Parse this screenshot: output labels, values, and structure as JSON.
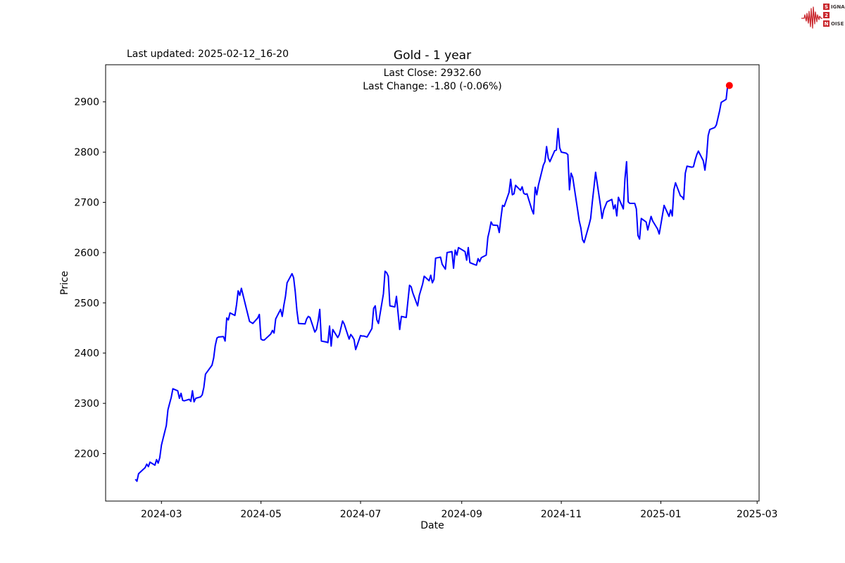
{
  "header": {
    "last_updated": "Last updated: 2025-02-12_16-20"
  },
  "logo": {
    "s": "S",
    "ignal": "IGNAL",
    "two": "2",
    "n": "N",
    "oise": "OISE",
    "accent_color": "#c9252b"
  },
  "chart_data": {
    "type": "line",
    "title": "Gold - 1 year",
    "subtitle_close": "Last Close: 2932.60",
    "subtitle_change": "Last Change: -1.80 (-0.06%)",
    "xlabel": "Date",
    "ylabel": "Price",
    "line_color": "#0000ff",
    "marker_color": "#ff0000",
    "grid": false,
    "x_ticks": [
      "2024-03",
      "2024-05",
      "2024-07",
      "2024-09",
      "2024-11",
      "2025-01",
      "2025-03"
    ],
    "y_ticks": [
      2200,
      2300,
      2400,
      2500,
      2600,
      2700,
      2800,
      2900
    ],
    "x_range_days": [
      "2024-02-14",
      "2025-02-12"
    ],
    "y_range_approx": [
      2105,
      2974
    ],
    "last_point": {
      "date": "2025-02-12",
      "value": 2932.6
    },
    "series": [
      {
        "name": "Gold",
        "points": [
          [
            "2024-02-14",
            2149
          ],
          [
            "2024-02-15",
            2145
          ],
          [
            "2024-02-16",
            2160
          ],
          [
            "2024-02-20",
            2172
          ],
          [
            "2024-02-21",
            2179
          ],
          [
            "2024-02-22",
            2174
          ],
          [
            "2024-02-23",
            2183
          ],
          [
            "2024-02-26",
            2177
          ],
          [
            "2024-02-27",
            2188
          ],
          [
            "2024-02-28",
            2181
          ],
          [
            "2024-02-29",
            2192
          ],
          [
            "2024-03-01",
            2217
          ],
          [
            "2024-03-04",
            2256
          ],
          [
            "2024-03-05",
            2287
          ],
          [
            "2024-03-06",
            2300
          ],
          [
            "2024-03-07",
            2312
          ],
          [
            "2024-03-08",
            2329
          ],
          [
            "2024-03-11",
            2325
          ],
          [
            "2024-03-12",
            2310
          ],
          [
            "2024-03-13",
            2320
          ],
          [
            "2024-03-14",
            2306
          ],
          [
            "2024-03-15",
            2305
          ],
          [
            "2024-03-18",
            2308
          ],
          [
            "2024-03-19",
            2304
          ],
          [
            "2024-03-20",
            2325
          ],
          [
            "2024-03-21",
            2303
          ],
          [
            "2024-03-22",
            2310
          ],
          [
            "2024-03-25",
            2313
          ],
          [
            "2024-03-26",
            2317
          ],
          [
            "2024-03-27",
            2332
          ],
          [
            "2024-03-28",
            2358
          ],
          [
            "2024-04-01",
            2376
          ],
          [
            "2024-04-02",
            2390
          ],
          [
            "2024-04-03",
            2415
          ],
          [
            "2024-04-04",
            2430
          ],
          [
            "2024-04-05",
            2432
          ],
          [
            "2024-04-08",
            2433
          ],
          [
            "2024-04-09",
            2424
          ],
          [
            "2024-04-10",
            2470
          ],
          [
            "2024-04-11",
            2466
          ],
          [
            "2024-04-12",
            2480
          ],
          [
            "2024-04-15",
            2475
          ],
          [
            "2024-04-16",
            2496
          ],
          [
            "2024-04-17",
            2524
          ],
          [
            "2024-04-18",
            2515
          ],
          [
            "2024-04-19",
            2529
          ],
          [
            "2024-04-22",
            2489
          ],
          [
            "2024-04-24",
            2463
          ],
          [
            "2024-04-25",
            2461
          ],
          [
            "2024-04-26",
            2459
          ],
          [
            "2024-04-29",
            2470
          ],
          [
            "2024-04-30",
            2477
          ],
          [
            "2024-05-01",
            2428
          ],
          [
            "2024-05-02",
            2426
          ],
          [
            "2024-05-03",
            2426
          ],
          [
            "2024-05-07",
            2438
          ],
          [
            "2024-05-08",
            2445
          ],
          [
            "2024-05-09",
            2440
          ],
          [
            "2024-05-10",
            2468
          ],
          [
            "2024-05-13",
            2487
          ],
          [
            "2024-05-14",
            2473
          ],
          [
            "2024-05-15",
            2495
          ],
          [
            "2024-05-16",
            2513
          ],
          [
            "2024-05-17",
            2540
          ],
          [
            "2024-05-20",
            2558
          ],
          [
            "2024-05-21",
            2550
          ],
          [
            "2024-05-22",
            2522
          ],
          [
            "2024-05-23",
            2485
          ],
          [
            "2024-05-24",
            2459
          ],
          [
            "2024-05-28",
            2458
          ],
          [
            "2024-05-29",
            2468
          ],
          [
            "2024-05-30",
            2473
          ],
          [
            "2024-05-31",
            2471
          ],
          [
            "2024-06-03",
            2442
          ],
          [
            "2024-06-04",
            2447
          ],
          [
            "2024-06-05",
            2464
          ],
          [
            "2024-06-06",
            2487
          ],
          [
            "2024-06-07",
            2424
          ],
          [
            "2024-06-10",
            2422
          ],
          [
            "2024-06-11",
            2421
          ],
          [
            "2024-06-12",
            2454
          ],
          [
            "2024-06-13",
            2414
          ],
          [
            "2024-06-14",
            2447
          ],
          [
            "2024-06-17",
            2431
          ],
          [
            "2024-06-18",
            2437
          ],
          [
            "2024-06-20",
            2464
          ],
          [
            "2024-06-21",
            2458
          ],
          [
            "2024-06-24",
            2428
          ],
          [
            "2024-06-25",
            2437
          ],
          [
            "2024-06-26",
            2433
          ],
          [
            "2024-06-27",
            2427
          ],
          [
            "2024-06-28",
            2407
          ],
          [
            "2024-07-01",
            2435
          ],
          [
            "2024-07-02",
            2434
          ],
          [
            "2024-07-03",
            2434
          ],
          [
            "2024-07-05",
            2432
          ],
          [
            "2024-07-08",
            2449
          ],
          [
            "2024-07-09",
            2489
          ],
          [
            "2024-07-10",
            2494
          ],
          [
            "2024-07-11",
            2466
          ],
          [
            "2024-07-12",
            2459
          ],
          [
            "2024-07-15",
            2518
          ],
          [
            "2024-07-16",
            2563
          ],
          [
            "2024-07-17",
            2560
          ],
          [
            "2024-07-18",
            2553
          ],
          [
            "2024-07-19",
            2494
          ],
          [
            "2024-07-22",
            2492
          ],
          [
            "2024-07-23",
            2513
          ],
          [
            "2024-07-25",
            2447
          ],
          [
            "2024-07-26",
            2473
          ],
          [
            "2024-07-29",
            2471
          ],
          [
            "2024-07-31",
            2535
          ],
          [
            "2024-08-01",
            2532
          ],
          [
            "2024-08-02",
            2520
          ],
          [
            "2024-08-05",
            2494
          ],
          [
            "2024-08-06",
            2515
          ],
          [
            "2024-08-08",
            2537
          ],
          [
            "2024-08-09",
            2553
          ],
          [
            "2024-08-12",
            2544
          ],
          [
            "2024-08-13",
            2555
          ],
          [
            "2024-08-14",
            2540
          ],
          [
            "2024-08-15",
            2547
          ],
          [
            "2024-08-16",
            2589
          ],
          [
            "2024-08-19",
            2591
          ],
          [
            "2024-08-20",
            2577
          ],
          [
            "2024-08-22",
            2567
          ],
          [
            "2024-08-23",
            2600
          ],
          [
            "2024-08-26",
            2602
          ],
          [
            "2024-08-27",
            2569
          ],
          [
            "2024-08-28",
            2605
          ],
          [
            "2024-08-29",
            2595
          ],
          [
            "2024-08-30",
            2610
          ],
          [
            "2024-09-03",
            2602
          ],
          [
            "2024-09-04",
            2585
          ],
          [
            "2024-09-05",
            2610
          ],
          [
            "2024-09-06",
            2580
          ],
          [
            "2024-09-09",
            2576
          ],
          [
            "2024-09-10",
            2575
          ],
          [
            "2024-09-11",
            2588
          ],
          [
            "2024-09-12",
            2582
          ],
          [
            "2024-09-13",
            2590
          ],
          [
            "2024-09-16",
            2595
          ],
          [
            "2024-09-17",
            2630
          ],
          [
            "2024-09-18",
            2644
          ],
          [
            "2024-09-19",
            2661
          ],
          [
            "2024-09-20",
            2655
          ],
          [
            "2024-09-23",
            2654
          ],
          [
            "2024-09-24",
            2640
          ],
          [
            "2024-09-25",
            2668
          ],
          [
            "2024-09-26",
            2694
          ],
          [
            "2024-09-27",
            2692
          ],
          [
            "2024-09-30",
            2720
          ],
          [
            "2024-10-01",
            2746
          ],
          [
            "2024-10-02",
            2715
          ],
          [
            "2024-10-03",
            2717
          ],
          [
            "2024-10-04",
            2734
          ],
          [
            "2024-10-07",
            2724
          ],
          [
            "2024-10-08",
            2731
          ],
          [
            "2024-10-09",
            2718
          ],
          [
            "2024-10-10",
            2716
          ],
          [
            "2024-10-11",
            2717
          ],
          [
            "2024-10-14",
            2685
          ],
          [
            "2024-10-15",
            2677
          ],
          [
            "2024-10-16",
            2730
          ],
          [
            "2024-10-17",
            2715
          ],
          [
            "2024-10-18",
            2734
          ],
          [
            "2024-10-21",
            2774
          ],
          [
            "2024-10-22",
            2781
          ],
          [
            "2024-10-23",
            2811
          ],
          [
            "2024-10-24",
            2788
          ],
          [
            "2024-10-25",
            2781
          ],
          [
            "2024-10-28",
            2803
          ],
          [
            "2024-10-29",
            2804
          ],
          [
            "2024-10-30",
            2847
          ],
          [
            "2024-10-31",
            2809
          ],
          [
            "2024-11-01",
            2800
          ],
          [
            "2024-11-04",
            2798
          ],
          [
            "2024-11-05",
            2795
          ],
          [
            "2024-11-06",
            2725
          ],
          [
            "2024-11-07",
            2758
          ],
          [
            "2024-11-08",
            2750
          ],
          [
            "2024-11-11",
            2685
          ],
          [
            "2024-11-12",
            2663
          ],
          [
            "2024-11-13",
            2649
          ],
          [
            "2024-11-14",
            2626
          ],
          [
            "2024-11-15",
            2620
          ],
          [
            "2024-11-18",
            2655
          ],
          [
            "2024-11-19",
            2668
          ],
          [
            "2024-11-20",
            2700
          ],
          [
            "2024-11-21",
            2730
          ],
          [
            "2024-11-22",
            2760
          ],
          [
            "2024-11-25",
            2694
          ],
          [
            "2024-11-26",
            2668
          ],
          [
            "2024-11-27",
            2685
          ],
          [
            "2024-11-29",
            2701
          ],
          [
            "2024-12-02",
            2706
          ],
          [
            "2024-12-03",
            2687
          ],
          [
            "2024-12-04",
            2695
          ],
          [
            "2024-12-05",
            2673
          ],
          [
            "2024-12-06",
            2710
          ],
          [
            "2024-12-09",
            2687
          ],
          [
            "2024-12-10",
            2747
          ],
          [
            "2024-12-11",
            2781
          ],
          [
            "2024-12-12",
            2701
          ],
          [
            "2024-12-13",
            2698
          ],
          [
            "2024-12-16",
            2698
          ],
          [
            "2024-12-17",
            2687
          ],
          [
            "2024-12-18",
            2634
          ],
          [
            "2024-12-19",
            2627
          ],
          [
            "2024-12-20",
            2668
          ],
          [
            "2024-12-23",
            2661
          ],
          [
            "2024-12-24",
            2645
          ],
          [
            "2024-12-26",
            2672
          ],
          [
            "2024-12-27",
            2663
          ],
          [
            "2024-12-30",
            2647
          ],
          [
            "2024-12-31",
            2637
          ],
          [
            "2025-01-02",
            2675
          ],
          [
            "2025-01-03",
            2694
          ],
          [
            "2025-01-06",
            2672
          ],
          [
            "2025-01-07",
            2685
          ],
          [
            "2025-01-08",
            2673
          ],
          [
            "2025-01-09",
            2725
          ],
          [
            "2025-01-10",
            2739
          ],
          [
            "2025-01-13",
            2713
          ],
          [
            "2025-01-14",
            2711
          ],
          [
            "2025-01-15",
            2706
          ],
          [
            "2025-01-16",
            2758
          ],
          [
            "2025-01-17",
            2772
          ],
          [
            "2025-01-20",
            2770
          ],
          [
            "2025-01-21",
            2771
          ],
          [
            "2025-01-22",
            2784
          ],
          [
            "2025-01-23",
            2795
          ],
          [
            "2025-01-24",
            2802
          ],
          [
            "2025-01-27",
            2783
          ],
          [
            "2025-01-28",
            2764
          ],
          [
            "2025-01-29",
            2790
          ],
          [
            "2025-01-30",
            2833
          ],
          [
            "2025-01-31",
            2845
          ],
          [
            "2025-02-03",
            2849
          ],
          [
            "2025-02-04",
            2854
          ],
          [
            "2025-02-05",
            2868
          ],
          [
            "2025-02-06",
            2882
          ],
          [
            "2025-02-07",
            2899
          ],
          [
            "2025-02-10",
            2905
          ],
          [
            "2025-02-11",
            2934.4
          ],
          [
            "2025-02-12",
            2932.6
          ]
        ]
      }
    ]
  }
}
